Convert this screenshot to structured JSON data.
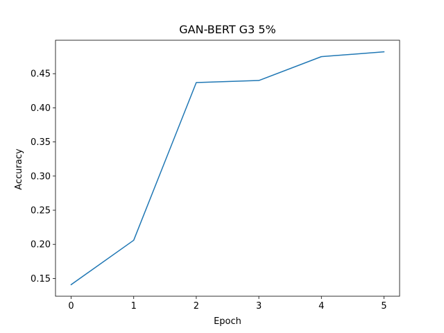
{
  "chart_data": {
    "type": "line",
    "title": "GAN-BERT G3 5%",
    "xlabel": "Epoch",
    "ylabel": "Accuracy",
    "x": [
      0,
      1,
      2,
      3,
      4,
      5
    ],
    "series": [
      {
        "values": [
          0.141,
          0.206,
          0.437,
          0.44,
          0.475,
          0.482
        ],
        "color": "#1f77b4"
      }
    ],
    "xlim": [
      -0.25,
      5.25
    ],
    "ylim": [
      0.124,
      0.499
    ],
    "xticks": [
      0,
      1,
      2,
      3,
      4,
      5
    ],
    "xtick_labels": [
      "0",
      "1",
      "2",
      "3",
      "4",
      "5"
    ],
    "yticks": [
      0.15,
      0.2,
      0.25,
      0.3,
      0.35,
      0.4,
      0.45
    ],
    "ytick_labels": [
      "0.15",
      "0.20",
      "0.25",
      "0.30",
      "0.35",
      "0.40",
      "0.45"
    ],
    "grid": false,
    "legend": "none"
  }
}
